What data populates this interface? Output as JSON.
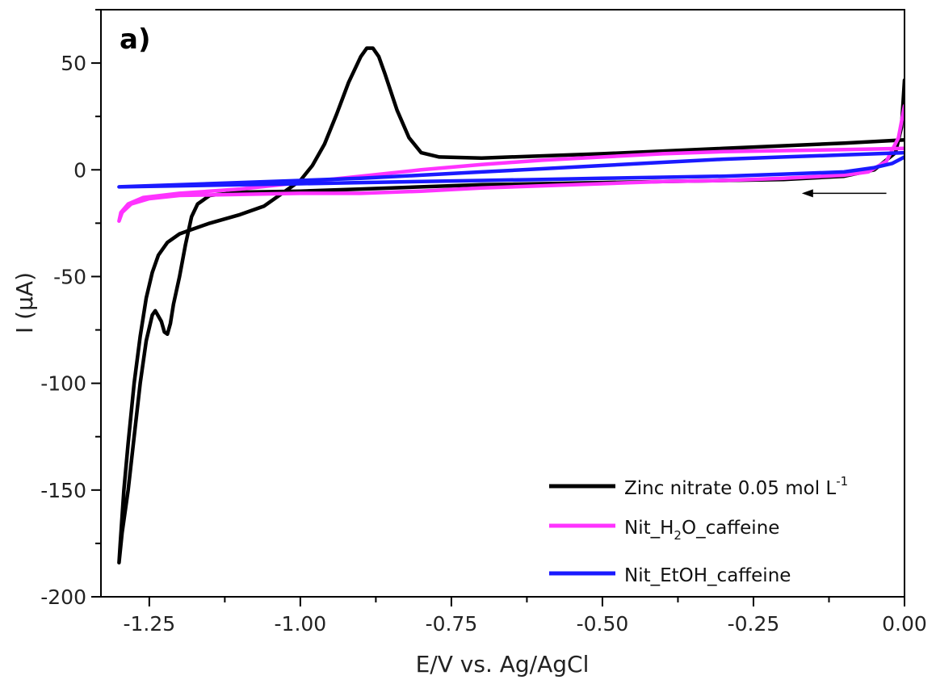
{
  "chart_data": {
    "type": "line",
    "panel_label": "a)",
    "xlabel": "E/V vs. Ag/AgCl",
    "ylabel": "I (μA)",
    "xlim": [
      -1.33,
      0.0
    ],
    "ylim": [
      -200,
      75
    ],
    "x_ticks": [
      -1.25,
      -1.0,
      -0.75,
      -0.5,
      -0.25,
      0.0
    ],
    "x_tick_labels": [
      "-1.25",
      "-1.00",
      "-0.75",
      "-0.50",
      "-0.25",
      "0.00"
    ],
    "y_ticks": [
      50,
      0,
      -50,
      -100,
      -150,
      -200
    ],
    "y_tick_labels": [
      "50",
      "0",
      "-50",
      "-100",
      "-150",
      "-200"
    ],
    "grid": false,
    "legend_position": "bottom-right",
    "scan_direction_arrow": {
      "from": [
        -0.03,
        -11
      ],
      "to": [
        -0.17,
        -11
      ]
    },
    "series": [
      {
        "name": "Zinc nitrate 0.05 mol L-1",
        "legend_main": "Zinc nitrate 0.05 mol L",
        "legend_sup": "-1",
        "color": "#000000",
        "points": [
          [
            0.0,
            42
          ],
          [
            -0.005,
            20
          ],
          [
            -0.015,
            8
          ],
          [
            -0.05,
            0
          ],
          [
            -0.1,
            -3
          ],
          [
            -0.2,
            -4.5
          ],
          [
            -0.3,
            -5
          ],
          [
            -0.4,
            -5.5
          ],
          [
            -0.5,
            -6
          ],
          [
            -0.6,
            -6.5
          ],
          [
            -0.7,
            -7
          ],
          [
            -0.8,
            -8
          ],
          [
            -0.9,
            -9
          ],
          [
            -1.0,
            -10
          ],
          [
            -1.1,
            -10.5
          ],
          [
            -1.15,
            -12
          ],
          [
            -1.17,
            -16
          ],
          [
            -1.18,
            -22
          ],
          [
            -1.19,
            -35
          ],
          [
            -1.2,
            -50
          ],
          [
            -1.21,
            -63
          ],
          [
            -1.215,
            -72
          ],
          [
            -1.22,
            -77
          ],
          [
            -1.225,
            -76
          ],
          [
            -1.23,
            -71
          ],
          [
            -1.24,
            -66
          ],
          [
            -1.245,
            -68
          ],
          [
            -1.255,
            -80
          ],
          [
            -1.265,
            -100
          ],
          [
            -1.275,
            -125
          ],
          [
            -1.285,
            -150
          ],
          [
            -1.295,
            -170
          ],
          [
            -1.3,
            -184
          ],
          [
            -1.298,
            -175
          ],
          [
            -1.292,
            -150
          ],
          [
            -1.285,
            -128
          ],
          [
            -1.275,
            -100
          ],
          [
            -1.265,
            -78
          ],
          [
            -1.255,
            -60
          ],
          [
            -1.245,
            -48
          ],
          [
            -1.235,
            -40
          ],
          [
            -1.22,
            -34
          ],
          [
            -1.2,
            -30
          ],
          [
            -1.18,
            -28
          ],
          [
            -1.15,
            -25
          ],
          [
            -1.1,
            -21
          ],
          [
            -1.06,
            -17
          ],
          [
            -1.03,
            -11
          ],
          [
            -1.0,
            -5
          ],
          [
            -0.98,
            2
          ],
          [
            -0.96,
            12
          ],
          [
            -0.94,
            26
          ],
          [
            -0.92,
            41
          ],
          [
            -0.9,
            53
          ],
          [
            -0.89,
            57
          ],
          [
            -0.88,
            57
          ],
          [
            -0.87,
            53
          ],
          [
            -0.86,
            45
          ],
          [
            -0.84,
            28
          ],
          [
            -0.82,
            15
          ],
          [
            -0.8,
            8
          ],
          [
            -0.77,
            6
          ],
          [
            -0.7,
            5.5
          ],
          [
            -0.5,
            7.5
          ],
          [
            -0.3,
            10
          ],
          [
            -0.1,
            12.5
          ],
          [
            0.0,
            14
          ]
        ]
      },
      {
        "name": "Nit_H2O_caffeine",
        "legend_parts": [
          "Nit_H",
          "2",
          "O_caffeine"
        ],
        "color": "#ff33ff",
        "points": [
          [
            0.0,
            30
          ],
          [
            -0.01,
            15
          ],
          [
            -0.03,
            4
          ],
          [
            -0.06,
            -1
          ],
          [
            -0.1,
            -2.5
          ],
          [
            -0.2,
            -4
          ],
          [
            -0.3,
            -5
          ],
          [
            -0.4,
            -5.5
          ],
          [
            -0.5,
            -6.5
          ],
          [
            -0.6,
            -7.5
          ],
          [
            -0.7,
            -8.5
          ],
          [
            -0.8,
            -10
          ],
          [
            -0.9,
            -11
          ],
          [
            -1.0,
            -11
          ],
          [
            -1.1,
            -11.5
          ],
          [
            -1.2,
            -12
          ],
          [
            -1.25,
            -13.5
          ],
          [
            -1.28,
            -16
          ],
          [
            -1.295,
            -20
          ],
          [
            -1.3,
            -24
          ],
          [
            -1.297,
            -20
          ],
          [
            -1.285,
            -16
          ],
          [
            -1.26,
            -13
          ],
          [
            -1.2,
            -11
          ],
          [
            -1.1,
            -9
          ],
          [
            -1.0,
            -6
          ],
          [
            -0.9,
            -3
          ],
          [
            -0.8,
            0
          ],
          [
            -0.7,
            2.5
          ],
          [
            -0.6,
            4.5
          ],
          [
            -0.5,
            6
          ],
          [
            -0.4,
            7.5
          ],
          [
            -0.3,
            8.5
          ],
          [
            -0.2,
            9
          ],
          [
            -0.1,
            9.5
          ],
          [
            0.0,
            10
          ]
        ]
      },
      {
        "name": "Nit_EtOH_caffeine",
        "legend_main": "Nit_EtOH_caffeine",
        "color": "#1a1aff",
        "points": [
          [
            0.0,
            6
          ],
          [
            -0.02,
            3
          ],
          [
            -0.05,
            1
          ],
          [
            -0.1,
            -1
          ],
          [
            -0.2,
            -2
          ],
          [
            -0.3,
            -3
          ],
          [
            -0.4,
            -3.5
          ],
          [
            -0.5,
            -4
          ],
          [
            -0.6,
            -4.5
          ],
          [
            -0.7,
            -5
          ],
          [
            -0.8,
            -5.5
          ],
          [
            -0.9,
            -6
          ],
          [
            -1.0,
            -6.5
          ],
          [
            -1.1,
            -7
          ],
          [
            -1.2,
            -7.5
          ],
          [
            -1.3,
            -8
          ],
          [
            -1.2,
            -7
          ],
          [
            -1.1,
            -6
          ],
          [
            -1.0,
            -5
          ],
          [
            -0.9,
            -4
          ],
          [
            -0.8,
            -2.5
          ],
          [
            -0.7,
            -1
          ],
          [
            -0.6,
            0.5
          ],
          [
            -0.5,
            2
          ],
          [
            -0.4,
            3.5
          ],
          [
            -0.3,
            5
          ],
          [
            -0.2,
            6
          ],
          [
            -0.1,
            7
          ],
          [
            0.0,
            8
          ]
        ]
      }
    ]
  }
}
